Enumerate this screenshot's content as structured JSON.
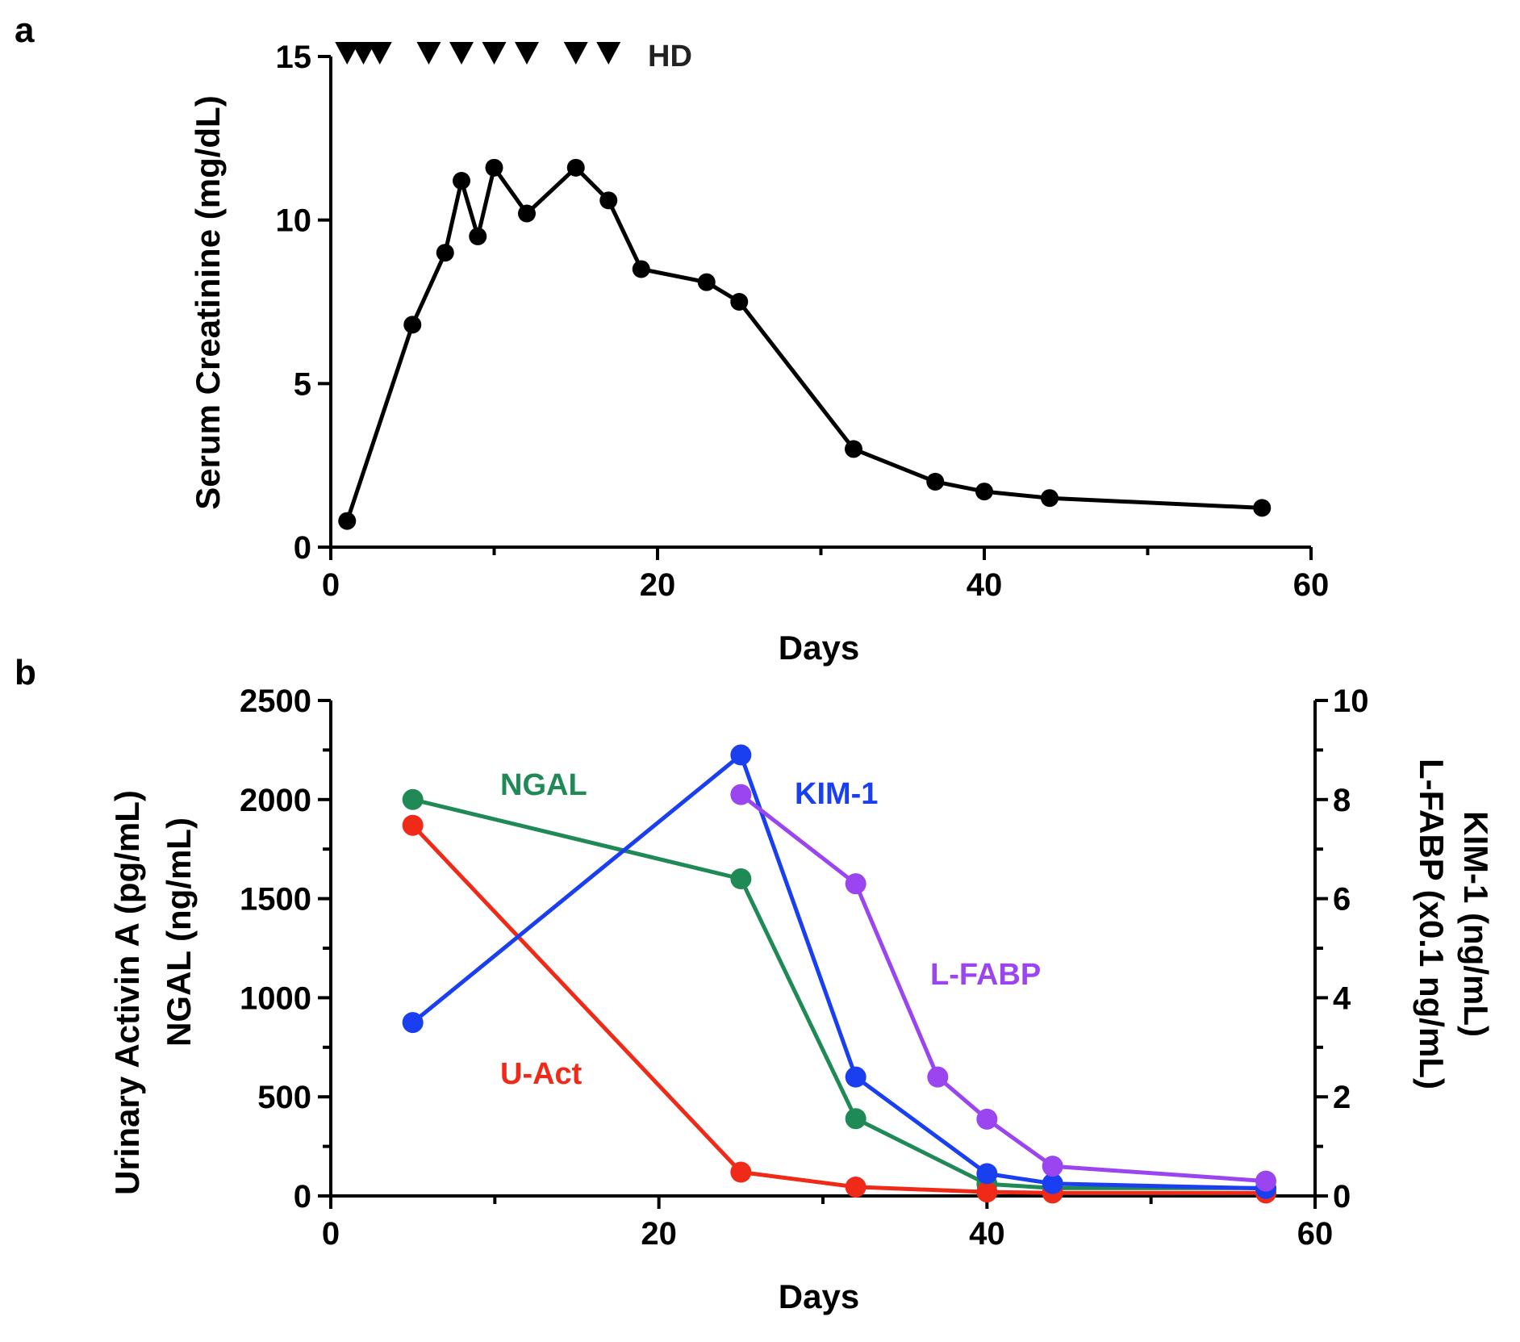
{
  "chart_data": [
    {
      "panel": "a",
      "type": "line",
      "xlabel": "Days",
      "ylabel": "Serum Creatinine (mg/dL)",
      "xlim": [
        0,
        60
      ],
      "ylim": [
        0,
        15
      ],
      "x_ticks": [
        "0",
        "20",
        "40",
        "60"
      ],
      "y_ticks": [
        "0",
        "5",
        "10",
        "15"
      ],
      "x_tick_values": [
        0,
        20,
        40,
        60
      ],
      "y_tick_values": [
        0,
        5,
        10,
        15
      ],
      "marker_label": "HD",
      "hd_days": [
        1,
        2,
        3,
        6,
        8,
        10,
        12,
        15,
        17
      ],
      "color": "#000000",
      "points": [
        {
          "x": 1,
          "y": 0.8
        },
        {
          "x": 5,
          "y": 6.8
        },
        {
          "x": 7,
          "y": 9.0
        },
        {
          "x": 8,
          "y": 11.2
        },
        {
          "x": 9,
          "y": 9.5
        },
        {
          "x": 10,
          "y": 11.6
        },
        {
          "x": 12,
          "y": 10.2
        },
        {
          "x": 15,
          "y": 11.6
        },
        {
          "x": 17,
          "y": 10.6
        },
        {
          "x": 19,
          "y": 8.5
        },
        {
          "x": 23,
          "y": 8.1
        },
        {
          "x": 25,
          "y": 7.5
        },
        {
          "x": 32,
          "y": 3.0
        },
        {
          "x": 37,
          "y": 2.0
        },
        {
          "x": 40,
          "y": 1.7
        },
        {
          "x": 44,
          "y": 1.5
        },
        {
          "x": 57,
          "y": 1.2
        }
      ]
    },
    {
      "panel": "b",
      "type": "line",
      "xlabel": "Days",
      "ylabel_left_line1": "Urinary Activin A (pg/mL)",
      "ylabel_left_line2": "NGAL (ng/mL)",
      "ylabel_right_line1": "KIM-1 (ng/mL)",
      "ylabel_right_line2": "L-FABP (x0.1 ng/mL)",
      "xlim": [
        0,
        60
      ],
      "ylim_left": [
        0,
        2500
      ],
      "ylim_right": [
        0,
        10
      ],
      "x_ticks": [
        "0",
        "20",
        "40",
        "60"
      ],
      "y_ticks_left": [
        "0",
        "500",
        "1000",
        "1500",
        "2000",
        "2500"
      ],
      "y_ticks_right": [
        "0",
        "2",
        "4",
        "6",
        "8",
        "10"
      ],
      "x_tick_values": [
        0,
        20,
        40,
        60
      ],
      "y_tick_values_left": [
        0,
        500,
        1000,
        1500,
        2000,
        2500
      ],
      "y_tick_values_right": [
        0,
        2,
        4,
        6,
        8,
        10
      ],
      "series": [
        {
          "name": "NGAL",
          "axis": "left",
          "color": "#1f8a55",
          "x": [
            5,
            25,
            32,
            40,
            44,
            57
          ],
          "y": [
            2000,
            1600,
            390,
            60,
            40,
            40
          ]
        },
        {
          "name": "U-Act",
          "axis": "left",
          "color": "#f02a18",
          "x": [
            5,
            25,
            32,
            40,
            44,
            57
          ],
          "y": [
            1870,
            120,
            45,
            20,
            15,
            15
          ]
        },
        {
          "name": "KIM-1",
          "axis": "right",
          "color": "#1a3ff0",
          "x": [
            5,
            25,
            32,
            40,
            44,
            57
          ],
          "y": [
            3.5,
            8.9,
            2.4,
            0.45,
            0.25,
            0.15
          ]
        },
        {
          "name": "L-FABP",
          "axis": "right",
          "color": "#9a45f0",
          "x": [
            25,
            32,
            37,
            40,
            44,
            57
          ],
          "y": [
            8.1,
            6.3,
            2.4,
            1.55,
            0.6,
            0.3
          ]
        }
      ]
    }
  ]
}
